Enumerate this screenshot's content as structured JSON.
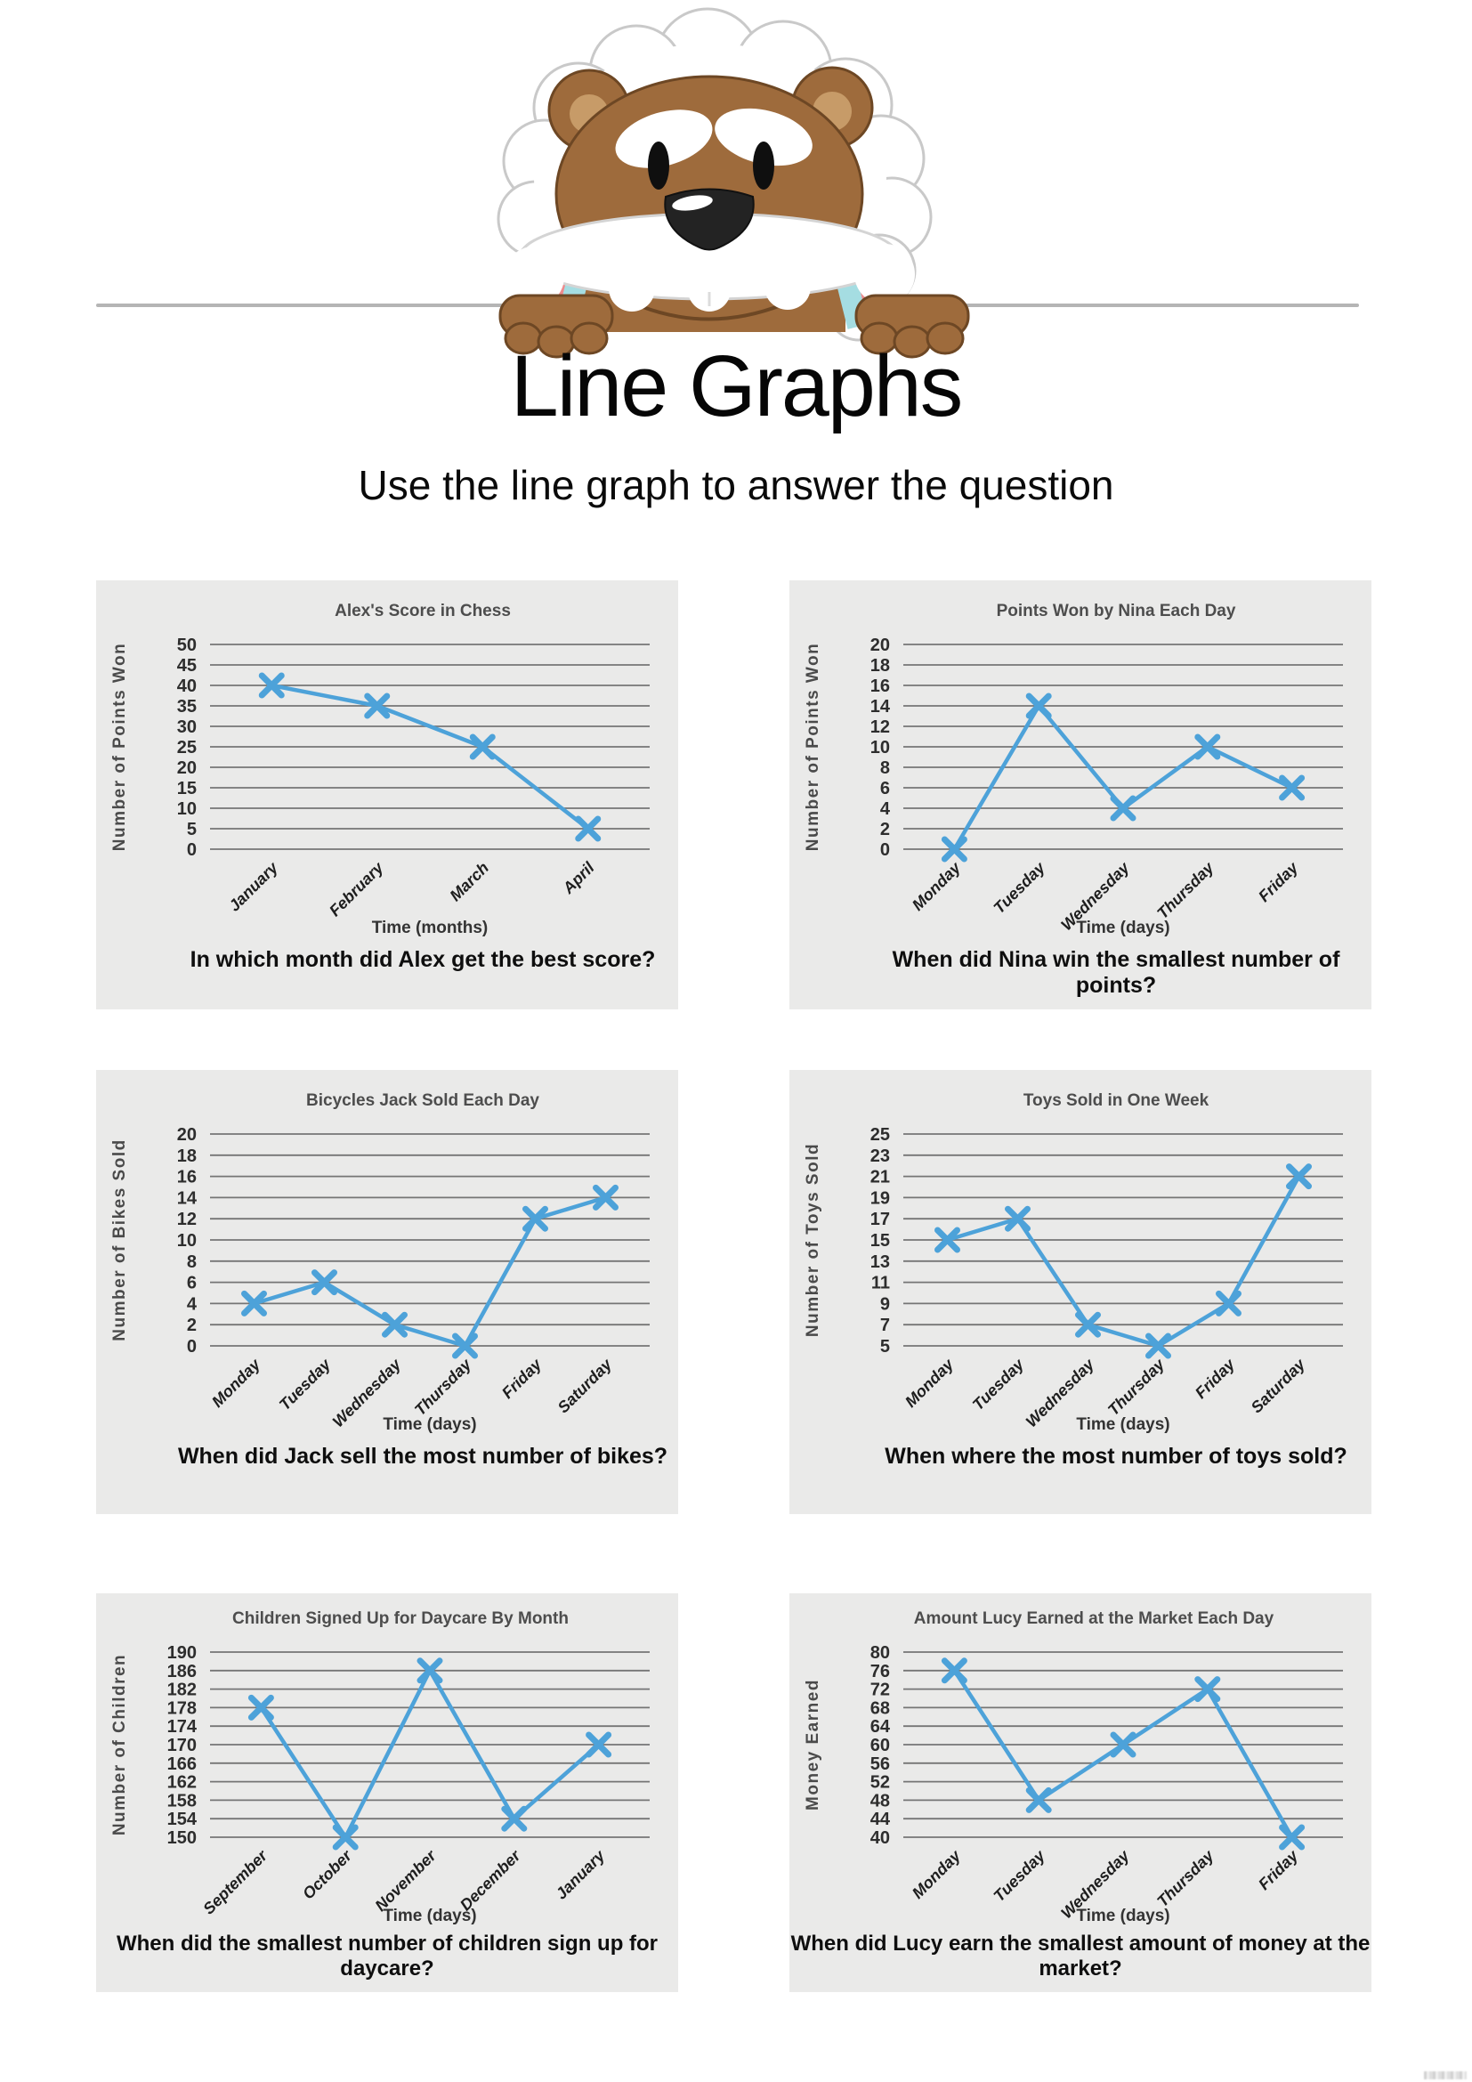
{
  "page": {
    "title": "Line Graphs",
    "subtitle": "Use the line graph to answer the question",
    "mascot_icon": "bear-peeking-over-wall-icon"
  },
  "style": {
    "accent_color": "#4da2d9",
    "grid_color": "#757575",
    "panel_bg": "#eaeae9",
    "divider_color": "#b5b5b5"
  },
  "chart_data": [
    {
      "type": "line",
      "title": "Alex's Score in Chess",
      "ylabel": "Number of Points Won",
      "xlabel": "Time (months)",
      "categories": [
        "January",
        "February",
        "March",
        "April"
      ],
      "values": [
        40,
        35,
        25,
        5
      ],
      "yticks": [
        0,
        5,
        10,
        15,
        20,
        25,
        30,
        35,
        40,
        45,
        50
      ],
      "ylim": [
        0,
        50
      ],
      "grid": true,
      "marker": "x",
      "line_color": "#4da2d9",
      "question": "In which month did Alex get the best score?"
    },
    {
      "type": "line",
      "title": "Points Won by Nina Each Day",
      "ylabel": "Number of Points Won",
      "xlabel": "Time (days)",
      "categories": [
        "Monday",
        "Tuesday",
        "Wednesday",
        "Thursday",
        "Friday"
      ],
      "values": [
        0,
        14,
        4,
        10,
        6
      ],
      "yticks": [
        0,
        2,
        4,
        6,
        8,
        10,
        12,
        14,
        16,
        18,
        20
      ],
      "ylim": [
        0,
        20
      ],
      "grid": true,
      "marker": "x",
      "line_color": "#4da2d9",
      "question": "When did Nina win the smallest number of points?"
    },
    {
      "type": "line",
      "title": "Bicycles Jack Sold Each Day",
      "ylabel": "Number of Bikes Sold",
      "xlabel": "Time (days)",
      "categories": [
        "Monday",
        "Tuesday",
        "Wednesday",
        "Thursday",
        "Friday",
        "Saturday"
      ],
      "values": [
        4,
        6,
        2,
        0,
        12,
        14
      ],
      "yticks": [
        0,
        2,
        4,
        6,
        8,
        10,
        12,
        14,
        16,
        18,
        20
      ],
      "ylim": [
        0,
        20
      ],
      "grid": true,
      "marker": "x",
      "line_color": "#4da2d9",
      "question": "When did Jack sell the most number of bikes?"
    },
    {
      "type": "line",
      "title": "Toys Sold in One Week",
      "ylabel": "Number of Toys Sold",
      "xlabel": "Time (days)",
      "categories": [
        "Monday",
        "Tuesday",
        "Wednesday",
        "Thursday",
        "Friday",
        "Saturday"
      ],
      "values": [
        15,
        17,
        7,
        5,
        9,
        21
      ],
      "yticks": [
        5,
        7,
        9,
        11,
        13,
        15,
        17,
        19,
        21,
        23,
        25
      ],
      "ylim": [
        5,
        25
      ],
      "grid": true,
      "marker": "x",
      "line_color": "#4da2d9",
      "question": "When where the most number of toys sold?"
    },
    {
      "type": "line",
      "title": "Children Signed Up for Daycare By Month",
      "ylabel": "Number of Children",
      "xlabel": "Time (days)",
      "categories": [
        "September",
        "October",
        "November",
        "December",
        "January"
      ],
      "values": [
        178,
        150,
        186,
        154,
        170
      ],
      "yticks": [
        150,
        154,
        158,
        162,
        166,
        170,
        174,
        178,
        182,
        186,
        190
      ],
      "ylim": [
        150,
        190
      ],
      "grid": true,
      "marker": "x",
      "line_color": "#4da2d9",
      "question": "When did the smallest number of children sign up for daycare?"
    },
    {
      "type": "line",
      "title": "Amount Lucy Earned at the Market Each Day",
      "ylabel": "Money Earned",
      "xlabel": "Time (days)",
      "categories": [
        "Monday",
        "Tuesday",
        "Wednesday",
        "Thursday",
        "Friday"
      ],
      "values": [
        76,
        48,
        60,
        72,
        40
      ],
      "yticks": [
        40,
        44,
        48,
        52,
        56,
        60,
        64,
        68,
        72,
        76,
        80
      ],
      "ylim": [
        40,
        80
      ],
      "grid": true,
      "marker": "x",
      "line_color": "#4da2d9",
      "question": "When did Lucy earn the smallest amount of money at the market?"
    }
  ]
}
